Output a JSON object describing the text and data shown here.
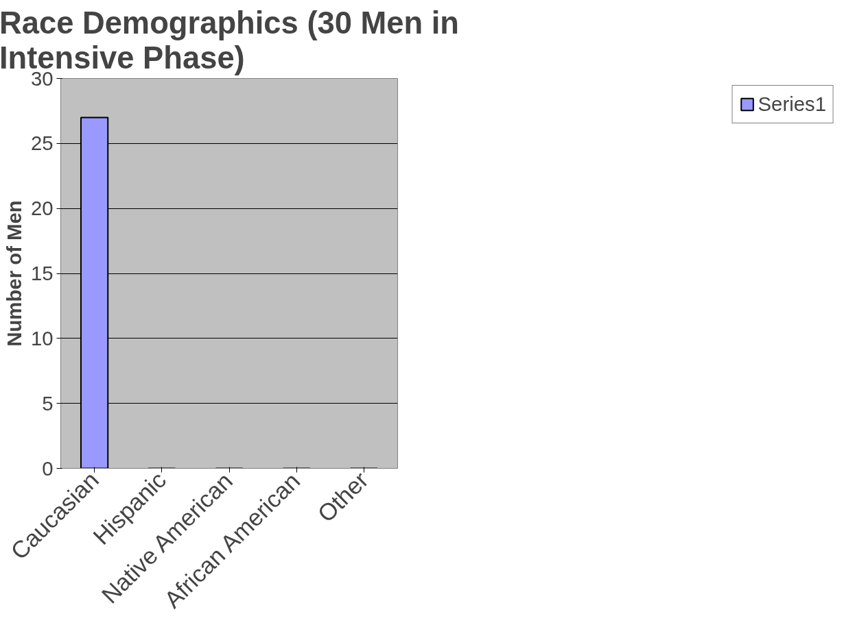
{
  "chart_data": {
    "type": "bar",
    "title": "Race Demographics (30 Men in\nIntensive Phase)",
    "ylabel": "Number of Men",
    "categories": [
      "Caucasian",
      "Hispanic",
      "Native American",
      "African American",
      "Other"
    ],
    "series": [
      {
        "name": "Series1",
        "color": "#9999ff",
        "values": [
          27,
          0,
          0,
          0,
          0
        ]
      }
    ],
    "ylim": [
      0,
      30
    ],
    "yticks": [
      0,
      5,
      10,
      15,
      20,
      25,
      30
    ],
    "grid": "y",
    "legend": "right"
  }
}
